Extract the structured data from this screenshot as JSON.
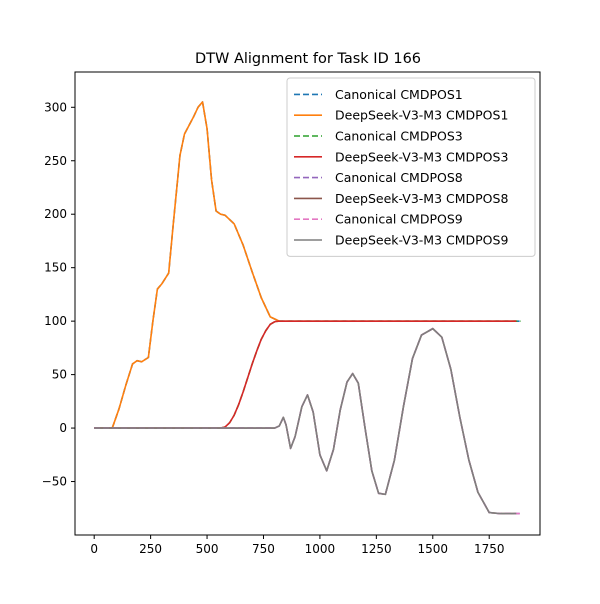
{
  "chart_data": {
    "type": "line",
    "title": "DTW Alignment for Task ID 166",
    "xlabel": "",
    "ylabel": "",
    "xlim": [
      -85,
      1975
    ],
    "ylim": [
      -100,
      333
    ],
    "xticks": [
      0,
      250,
      500,
      750,
      1000,
      1250,
      1500,
      1750
    ],
    "yticks": [
      -50,
      0,
      50,
      100,
      150,
      200,
      250,
      300
    ],
    "xtick_labels": [
      "0",
      "250",
      "500",
      "750",
      "1000",
      "1250",
      "1500",
      "1750"
    ],
    "ytick_labels": [
      "−50",
      "0",
      "50",
      "100",
      "150",
      "200",
      "250",
      "300"
    ],
    "grid": false,
    "legend_position": "top-right",
    "series": [
      {
        "name": "Canonical CMDPOS1",
        "color": "#1f77b4",
        "dashed": true,
        "x": [
          0,
          80,
          110,
          140,
          170,
          190,
          210,
          240,
          260,
          280,
          300,
          330,
          350,
          380,
          400,
          420,
          440,
          460,
          480,
          500,
          520,
          540,
          560,
          580,
          620,
          660,
          700,
          740,
          780,
          820,
          900,
          1100,
          1300,
          1500,
          1700,
          1890
        ],
        "y": [
          0,
          0,
          18,
          40,
          60,
          63,
          62,
          66,
          100,
          130,
          135,
          145,
          190,
          255,
          275,
          283,
          291,
          300,
          305,
          280,
          232,
          203,
          200,
          199,
          191,
          171,
          146,
          122,
          104,
          100,
          100,
          100,
          100,
          100,
          100,
          100
        ]
      },
      {
        "name": "DeepSeek-V3-M3 CMDPOS1",
        "color": "#ff7f0e",
        "dashed": false,
        "x": [
          0,
          80,
          110,
          140,
          170,
          190,
          210,
          240,
          260,
          280,
          300,
          330,
          350,
          380,
          400,
          420,
          440,
          460,
          480,
          500,
          520,
          540,
          560,
          580,
          620,
          660,
          700,
          740,
          780,
          820,
          900,
          1100,
          1300,
          1500,
          1700,
          1870
        ],
        "y": [
          0,
          0,
          18,
          40,
          60,
          63,
          62,
          66,
          100,
          130,
          135,
          145,
          190,
          255,
          275,
          283,
          291,
          300,
          305,
          280,
          232,
          203,
          200,
          199,
          191,
          171,
          146,
          122,
          104,
          100,
          100,
          100,
          100,
          100,
          100,
          100
        ]
      },
      {
        "name": "Canonical CMDPOS3",
        "color": "#2ca02c",
        "dashed": true,
        "x": [
          0,
          200,
          400,
          560,
          580,
          600,
          620,
          640,
          660,
          680,
          700,
          720,
          740,
          760,
          780,
          800,
          820,
          1000,
          1200,
          1400,
          1600,
          1890
        ],
        "y": [
          0,
          0,
          0,
          0,
          1,
          5,
          12,
          22,
          34,
          47,
          60,
          72,
          83,
          91,
          97,
          99.5,
          100,
          100,
          100,
          100,
          100,
          100
        ]
      },
      {
        "name": "DeepSeek-V3-M3 CMDPOS3",
        "color": "#d62728",
        "dashed": false,
        "x": [
          0,
          200,
          400,
          560,
          580,
          600,
          620,
          640,
          660,
          680,
          700,
          720,
          740,
          760,
          780,
          800,
          820,
          1000,
          1200,
          1400,
          1600,
          1870
        ],
        "y": [
          0,
          0,
          0,
          0,
          1,
          5,
          12,
          22,
          34,
          47,
          60,
          72,
          83,
          91,
          97,
          99.5,
          100,
          100,
          100,
          100,
          100,
          100
        ]
      },
      {
        "name": "Canonical CMDPOS8",
        "color": "#9467bd",
        "dashed": true,
        "x": [
          0,
          200,
          400,
          600,
          800,
          820,
          838,
          850,
          870,
          890,
          920,
          945,
          970,
          1000,
          1030,
          1060,
          1090,
          1120,
          1145,
          1170,
          1200,
          1230,
          1260,
          1290,
          1330,
          1370,
          1410,
          1450,
          1500,
          1540,
          1580,
          1620,
          1660,
          1700,
          1750,
          1800,
          1890
        ],
        "y": [
          0,
          0,
          0,
          0,
          0,
          2,
          10,
          3,
          -19,
          -8,
          20,
          31,
          15,
          -25,
          -40,
          -20,
          17,
          43,
          51,
          42,
          0,
          -40,
          -61,
          -62,
          -30,
          20,
          65,
          87,
          93,
          85,
          55,
          10,
          -30,
          -60,
          -79,
          -80,
          -80
        ]
      },
      {
        "name": "DeepSeek-V3-M3 CMDPOS8",
        "color": "#8c564b",
        "dashed": false,
        "x": [
          0,
          200,
          400,
          600,
          800,
          820,
          838,
          850,
          870,
          890,
          920,
          945,
          970,
          1000,
          1030,
          1060,
          1090,
          1120,
          1145,
          1170,
          1200,
          1230,
          1260,
          1290,
          1330,
          1370,
          1410,
          1450,
          1500,
          1540,
          1580,
          1620,
          1660,
          1700,
          1750,
          1800,
          1870
        ],
        "y": [
          0,
          0,
          0,
          0,
          0,
          2,
          10,
          3,
          -19,
          -8,
          20,
          31,
          15,
          -25,
          -40,
          -20,
          17,
          43,
          51,
          42,
          0,
          -40,
          -61,
          -62,
          -30,
          20,
          65,
          87,
          93,
          85,
          55,
          10,
          -30,
          -60,
          -79,
          -80,
          -80
        ]
      },
      {
        "name": "Canonical CMDPOS9",
        "color": "#e377c2",
        "dashed": true,
        "x": [
          0,
          200,
          400,
          600,
          800,
          820,
          838,
          850,
          870,
          890,
          920,
          945,
          970,
          1000,
          1030,
          1060,
          1090,
          1120,
          1145,
          1170,
          1200,
          1230,
          1260,
          1290,
          1330,
          1370,
          1410,
          1450,
          1500,
          1540,
          1580,
          1620,
          1660,
          1700,
          1750,
          1800,
          1890
        ],
        "y": [
          0,
          0,
          0,
          0,
          0,
          2,
          10,
          3,
          -19,
          -8,
          20,
          31,
          15,
          -25,
          -40,
          -20,
          17,
          43,
          51,
          42,
          0,
          -40,
          -61,
          -62,
          -30,
          20,
          65,
          87,
          93,
          85,
          55,
          10,
          -30,
          -60,
          -79,
          -80,
          -80
        ]
      },
      {
        "name": "DeepSeek-V3-M3 CMDPOS9",
        "color": "#7f7f7f",
        "dashed": false,
        "x": [
          0,
          200,
          400,
          600,
          800,
          820,
          838,
          850,
          870,
          890,
          920,
          945,
          970,
          1000,
          1030,
          1060,
          1090,
          1120,
          1145,
          1170,
          1200,
          1230,
          1260,
          1290,
          1330,
          1370,
          1410,
          1450,
          1500,
          1540,
          1580,
          1620,
          1660,
          1700,
          1750,
          1800,
          1870
        ],
        "y": [
          0,
          0,
          0,
          0,
          0,
          2,
          10,
          3,
          -19,
          -8,
          20,
          31,
          15,
          -25,
          -40,
          -20,
          17,
          43,
          51,
          42,
          0,
          -40,
          -61,
          -62,
          -30,
          20,
          65,
          87,
          93,
          85,
          55,
          10,
          -30,
          -60,
          -79,
          -80,
          -80
        ]
      }
    ]
  }
}
